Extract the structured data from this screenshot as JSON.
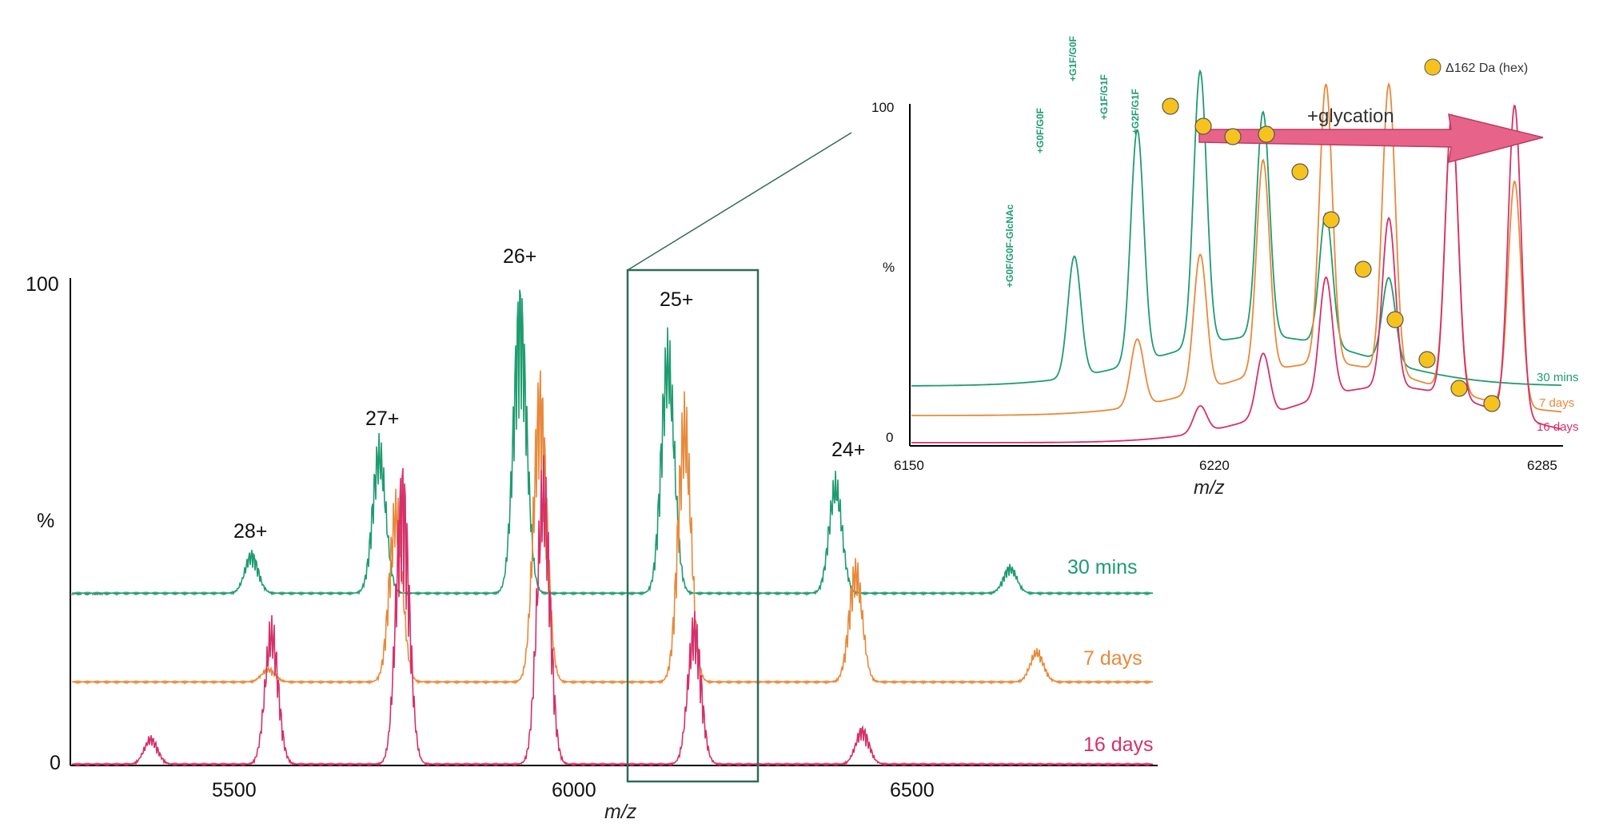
{
  "chart_data": [
    {
      "type": "line",
      "title": "",
      "xlabel": "m/z",
      "ylabel": "%",
      "xlim": [
        5250,
        6870
      ],
      "ylim": [
        0,
        100
      ],
      "x_ticks": [
        "5500",
        "6000",
        "6500"
      ],
      "y_ticks": [
        "0",
        "100"
      ],
      "series": [
        {
          "name": "30 mins",
          "color": "#1e9c70",
          "peaks": [
            {
              "mz": 5520,
              "height": 9
            },
            {
              "mz": 5710,
              "height": 33
            },
            {
              "mz": 5920,
              "height": 66
            },
            {
              "mz": 6140,
              "height": 55
            },
            {
              "mz": 6390,
              "height": 25
            },
            {
              "mz": 6650,
              "height": 6
            }
          ]
        },
        {
          "name": "7 days",
          "color": "#e8893a",
          "peaks": [
            {
              "mz": 5545,
              "height": 3
            },
            {
              "mz": 5735,
              "height": 40
            },
            {
              "mz": 5950,
              "height": 66
            },
            {
              "mz": 6165,
              "height": 60
            },
            {
              "mz": 6420,
              "height": 26
            },
            {
              "mz": 6690,
              "height": 7
            }
          ]
        },
        {
          "name": "16 days",
          "color": "#d6306a",
          "peaks": [
            {
              "mz": 5370,
              "height": 6
            },
            {
              "mz": 5550,
              "height": 31
            },
            {
              "mz": 5745,
              "height": 64
            },
            {
              "mz": 5955,
              "height": 64
            },
            {
              "mz": 6180,
              "height": 32
            },
            {
              "mz": 6430,
              "height": 8
            }
          ]
        }
      ],
      "annotations": [
        "28+",
        "27+",
        "26+",
        "25+",
        "24+"
      ]
    },
    {
      "type": "line",
      "title": "",
      "xlabel": "m/z",
      "ylabel": "%",
      "xlim": [
        6150,
        6285
      ],
      "ylim": [
        0,
        100
      ],
      "x_ticks": [
        "6150",
        "6220",
        "6285"
      ],
      "y_ticks": [
        "0",
        "100"
      ],
      "series": [
        {
          "name": "30 mins",
          "color": "#1e9c70",
          "peaks": [
            {
              "mz": 6184,
              "height": 44
            },
            {
              "mz": 6197,
              "height": 85
            },
            {
              "mz": 6210,
              "height": 100
            },
            {
              "mz": 6223,
              "height": 82
            },
            {
              "mz": 6236,
              "height": 48
            },
            {
              "mz": 6249,
              "height": 31
            }
          ]
        },
        {
          "name": "7 days",
          "color": "#e8893a",
          "peaks": [
            {
              "mz": 6197,
              "height": 22
            },
            {
              "mz": 6210,
              "height": 45
            },
            {
              "mz": 6223,
              "height": 70
            },
            {
              "mz": 6236,
              "height": 92
            },
            {
              "mz": 6249,
              "height": 95
            },
            {
              "mz": 6262,
              "height": 90
            },
            {
              "mz": 6275,
              "height": 74
            }
          ]
        },
        {
          "name": "16 days",
          "color": "#d6306a",
          "peaks": [
            {
              "mz": 6210,
              "height": 8
            },
            {
              "mz": 6223,
              "height": 19
            },
            {
              "mz": 6236,
              "height": 36
            },
            {
              "mz": 6249,
              "height": 51
            },
            {
              "mz": 6262,
              "height": 85
            },
            {
              "mz": 6275,
              "height": 94
            }
          ]
        }
      ],
      "glycoform_labels": [
        "+G0F/G0F-GlcNAc",
        "+G0F/G0F",
        "+G1F/G0F",
        "+G1F/G1F",
        "+G2F/G1F"
      ],
      "arrow_label": "+glycation",
      "legend": {
        "marker": "yellow-circle",
        "label": "Δ162 Da (hex)"
      }
    }
  ]
}
